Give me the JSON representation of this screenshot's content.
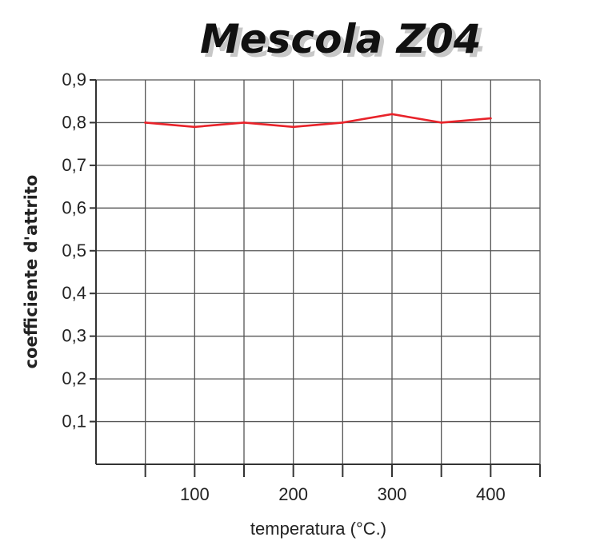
{
  "chart_data": {
    "type": "line",
    "title": "Mescola Z04",
    "xlabel": "temperatura (°C.)",
    "ylabel": "coefficiente d'attrito",
    "x": [
      50,
      100,
      150,
      200,
      250,
      300,
      350,
      400
    ],
    "series": [
      {
        "values": [
          0.8,
          0.79,
          0.8,
          0.79,
          0.8,
          0.82,
          0.8,
          0.81
        ],
        "color": "#e8232a"
      }
    ],
    "xlim": [
      0,
      450
    ],
    "ylim": [
      0,
      0.9
    ],
    "x_ticks": [
      50,
      100,
      150,
      200,
      250,
      300,
      350,
      400,
      450
    ],
    "x_tick_labels": [
      {
        "value": 100,
        "label": "100"
      },
      {
        "value": 200,
        "label": "200"
      },
      {
        "value": 300,
        "label": "300"
      },
      {
        "value": 400,
        "label": "400"
      }
    ],
    "y_ticks": [
      {
        "value": 0.1,
        "label": "0,1"
      },
      {
        "value": 0.2,
        "label": "0,2"
      },
      {
        "value": 0.3,
        "label": "0,3"
      },
      {
        "value": 0.4,
        "label": "0,4"
      },
      {
        "value": 0.5,
        "label": "0,5"
      },
      {
        "value": 0.6,
        "label": "0,6"
      },
      {
        "value": 0.7,
        "label": "0,7"
      },
      {
        "value": 0.8,
        "label": "0,8"
      },
      {
        "value": 0.9,
        "label": "0,9"
      }
    ],
    "grid": true,
    "legend": "none"
  }
}
